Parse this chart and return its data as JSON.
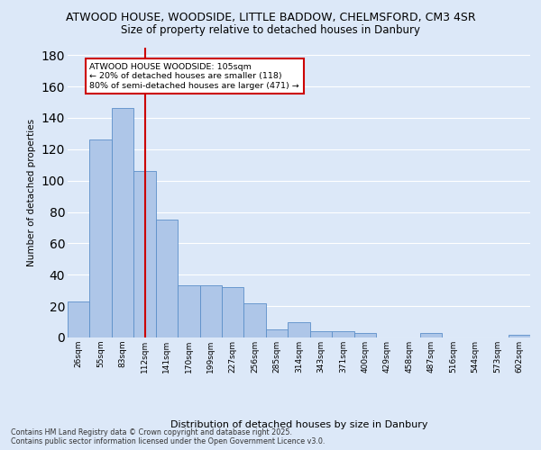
{
  "title_line1": "ATWOOD HOUSE, WOODSIDE, LITTLE BADDOW, CHELMSFORD, CM3 4SR",
  "title_line2": "Size of property relative to detached houses in Danbury",
  "xlabel": "Distribution of detached houses by size in Danbury",
  "ylabel": "Number of detached properties",
  "categories": [
    "26sqm",
    "55sqm",
    "83sqm",
    "112sqm",
    "141sqm",
    "170sqm",
    "199sqm",
    "227sqm",
    "256sqm",
    "285sqm",
    "314sqm",
    "343sqm",
    "371sqm",
    "400sqm",
    "429sqm",
    "458sqm",
    "487sqm",
    "516sqm",
    "544sqm",
    "573sqm",
    "602sqm"
  ],
  "values": [
    23,
    126,
    146,
    106,
    75,
    33,
    33,
    32,
    22,
    5,
    10,
    4,
    4,
    3,
    0,
    0,
    3,
    0,
    0,
    0,
    2
  ],
  "bar_color": "#aec6e8",
  "bar_edge_color": "#5b8fc9",
  "background_color": "#dce8f8",
  "grid_color": "#ffffff",
  "property_line_x": 3.0,
  "annotation_text": "ATWOOD HOUSE WOODSIDE: 105sqm\n← 20% of detached houses are smaller (118)\n80% of semi-detached houses are larger (471) →",
  "annotation_box_color": "#ffffff",
  "annotation_box_edge": "#cc0000",
  "property_line_color": "#cc0000",
  "ylim": [
    0,
    185
  ],
  "yticks": [
    0,
    20,
    40,
    60,
    80,
    100,
    120,
    140,
    160,
    180
  ],
  "footer": "Contains HM Land Registry data © Crown copyright and database right 2025.\nContains public sector information licensed under the Open Government Licence v3.0."
}
